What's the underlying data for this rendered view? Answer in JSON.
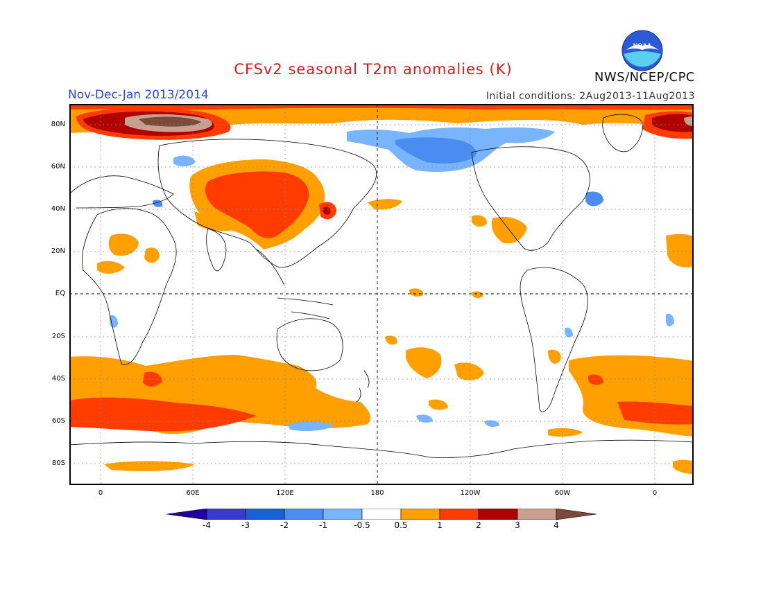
{
  "header": {
    "title": "CFSv2 seasonal T2m anomalies (K)",
    "period": "Nov-Dec-Jan 2013/2014",
    "initial_conditions": "Initial conditions: 2Aug2013-11Aug2013",
    "agency": "NWS/NCEP/CPC",
    "logo_text": "NOAA"
  },
  "map": {
    "lat_labels": [
      "80N",
      "60N",
      "40N",
      "20N",
      "EQ",
      "20S",
      "40S",
      "60S",
      "80S"
    ],
    "lon_labels": [
      "0",
      "60E",
      "120E",
      "180",
      "120W",
      "60W",
      "0"
    ],
    "colors": {
      "land_outline": "#000000",
      "anom_0_5_1": "#ff9f00",
      "anom_1_2": "#ff3b00",
      "anom_2_3": "#b00000",
      "anom_3_4": "#c8a090",
      "anom_gt4": "#7a4a3a",
      "anom_m1_m0_5": "#78b4ff",
      "anom_m2_m1": "#4a8cf0",
      "anom_m3_m2": "#1a5fd8",
      "anom_m4_m3": "#3a3ad0",
      "anom_lt_m4": "#2000a0"
    }
  },
  "colorbar": {
    "labels": [
      "-4",
      "-3",
      "-2",
      "-1",
      "-0.5",
      "0.5",
      "1",
      "2",
      "3",
      "4"
    ],
    "colors": [
      "#2000a0",
      "#3a3ad0",
      "#1a5fd8",
      "#4a8cf0",
      "#78b4ff",
      "#ffffff",
      "#ff9f00",
      "#ff3b00",
      "#b00000",
      "#c8a090",
      "#7a4a3a"
    ]
  }
}
